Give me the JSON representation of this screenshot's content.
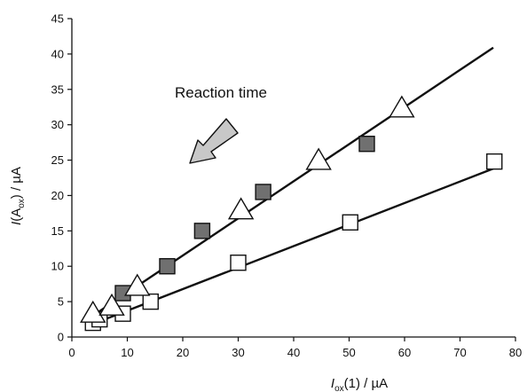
{
  "chart_data": {
    "type": "scatter",
    "title": "",
    "xlabel": {
      "italic": "I",
      "sub": "ox",
      "rest": "(1)  /  µA"
    },
    "ylabel": {
      "italic": "I",
      "open": "(A",
      "sub": "ox",
      "rest": ")  /  µA"
    },
    "xlim": [
      0,
      80
    ],
    "ylim": [
      0,
      45
    ],
    "xticks": [
      0,
      10,
      20,
      30,
      40,
      50,
      60,
      70,
      80
    ],
    "yticks": [
      0,
      5,
      10,
      15,
      20,
      25,
      30,
      35,
      40,
      45
    ],
    "grid": false,
    "annotation": {
      "text": "Reaction time"
    },
    "series": [
      {
        "marker": "open-square",
        "color": "#ffffff",
        "points": [
          [
            3.8,
            2.0
          ],
          [
            5.0,
            2.5
          ],
          [
            9.2,
            3.3
          ],
          [
            14.2,
            5.0
          ],
          [
            30.0,
            10.5
          ],
          [
            50.2,
            16.2
          ],
          [
            76.2,
            24.8
          ]
        ]
      },
      {
        "marker": "filled-square",
        "color": "#707070",
        "points": [
          [
            9.2,
            6.2
          ],
          [
            17.2,
            10.0
          ],
          [
            23.5,
            15.0
          ],
          [
            34.5,
            20.5
          ],
          [
            53.2,
            27.3
          ]
        ]
      },
      {
        "marker": "open-triangle",
        "color": "#ffffff",
        "points": [
          [
            3.8,
            3.2
          ],
          [
            7.2,
            4.2
          ],
          [
            11.8,
            7.0
          ],
          [
            30.5,
            17.8
          ],
          [
            44.5,
            24.8
          ],
          [
            59.5,
            32.2
          ]
        ]
      }
    ],
    "fit_lines": [
      {
        "from": [
          3.0,
          1.6
        ],
        "to": [
          76.0,
          23.8
        ]
      },
      {
        "from": [
          3.0,
          2.6
        ],
        "to": [
          76.0,
          40.9
        ]
      }
    ]
  }
}
